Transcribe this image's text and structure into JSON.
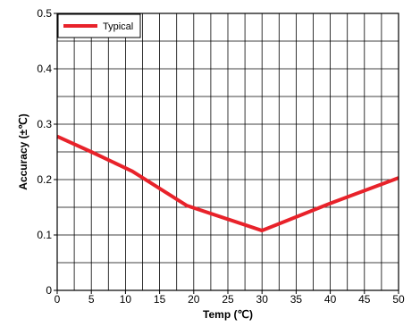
{
  "chart_data": {
    "type": "line",
    "xlabel": "Temp (℃)",
    "ylabel": "Accuracy (±℃)",
    "xlim": [
      0,
      50
    ],
    "ylim": [
      0,
      0.5
    ],
    "x_ticks": [
      0,
      5,
      10,
      15,
      20,
      25,
      30,
      35,
      40,
      45,
      50
    ],
    "x_tick_labels": [
      "0",
      "5",
      "10",
      "15",
      "20",
      "25",
      "30",
      "35",
      "40",
      "45",
      "50"
    ],
    "y_ticks": [
      0,
      0.1,
      0.2,
      0.3,
      0.4,
      0.5
    ],
    "y_tick_labels": [
      "0",
      "0.1",
      "0.2",
      "0.3",
      "0.4",
      "0.5"
    ],
    "x_minor_step": 2.5,
    "y_minor_step": 0.05,
    "grid": true,
    "legend_position": "top-left",
    "series": [
      {
        "name": "Typical",
        "color": "#e8222a",
        "points": [
          {
            "x": 0,
            "y": 0.278
          },
          {
            "x": 5,
            "y": 0.25
          },
          {
            "x": 11,
            "y": 0.215
          },
          {
            "x": 19,
            "y": 0.153
          },
          {
            "x": 30,
            "y": 0.108
          },
          {
            "x": 40,
            "y": 0.157
          },
          {
            "x": 50,
            "y": 0.203
          }
        ]
      }
    ]
  }
}
